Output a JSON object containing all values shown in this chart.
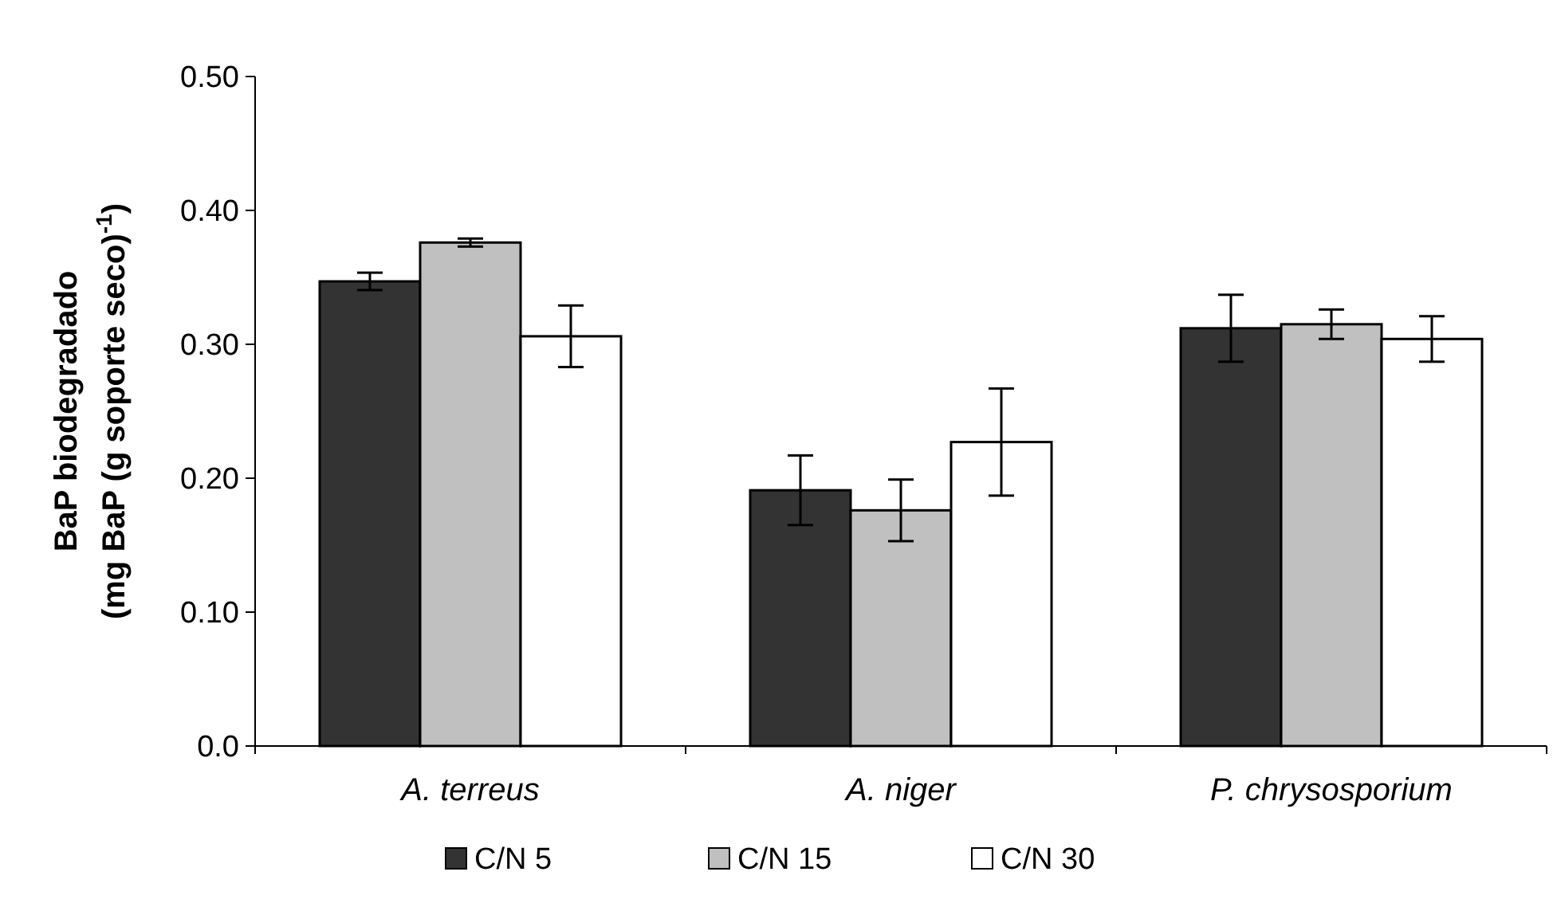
{
  "chart_data": {
    "type": "bar",
    "ylabel": "BaP biodegradado\n(mg  BaP (g soporte seco)$^{-1}$)",
    "categories": [
      "A. terreus",
      "A. niger",
      "P. chrysosporium"
    ],
    "series": [
      {
        "name": "C/N 5",
        "color": "#333333",
        "values": [
          0.347,
          0.191,
          0.312
        ],
        "errors": [
          0.0065,
          0.026,
          0.025
        ]
      },
      {
        "name": "C/N 15",
        "color": "#c0c0c0",
        "values": [
          0.376,
          0.176,
          0.315
        ],
        "errors": [
          0.003,
          0.023,
          0.011
        ]
      },
      {
        "name": "C/N 30",
        "color": "#ffffff",
        "values": [
          0.306,
          0.227,
          0.304
        ],
        "errors": [
          0.023,
          0.04,
          0.017
        ]
      }
    ],
    "ylim": [
      0,
      0.5
    ],
    "yticks": [
      {
        "value": 0,
        "label": "0.0"
      },
      {
        "value": 0.1,
        "label": "0.10"
      },
      {
        "value": 0.2,
        "label": "0.20"
      },
      {
        "value": 0.3,
        "label": "0.30"
      },
      {
        "value": 0.4,
        "label": "0.40"
      },
      {
        "value": 0.5,
        "label": "0.50"
      }
    ],
    "grid": false,
    "legend": "bottom"
  }
}
